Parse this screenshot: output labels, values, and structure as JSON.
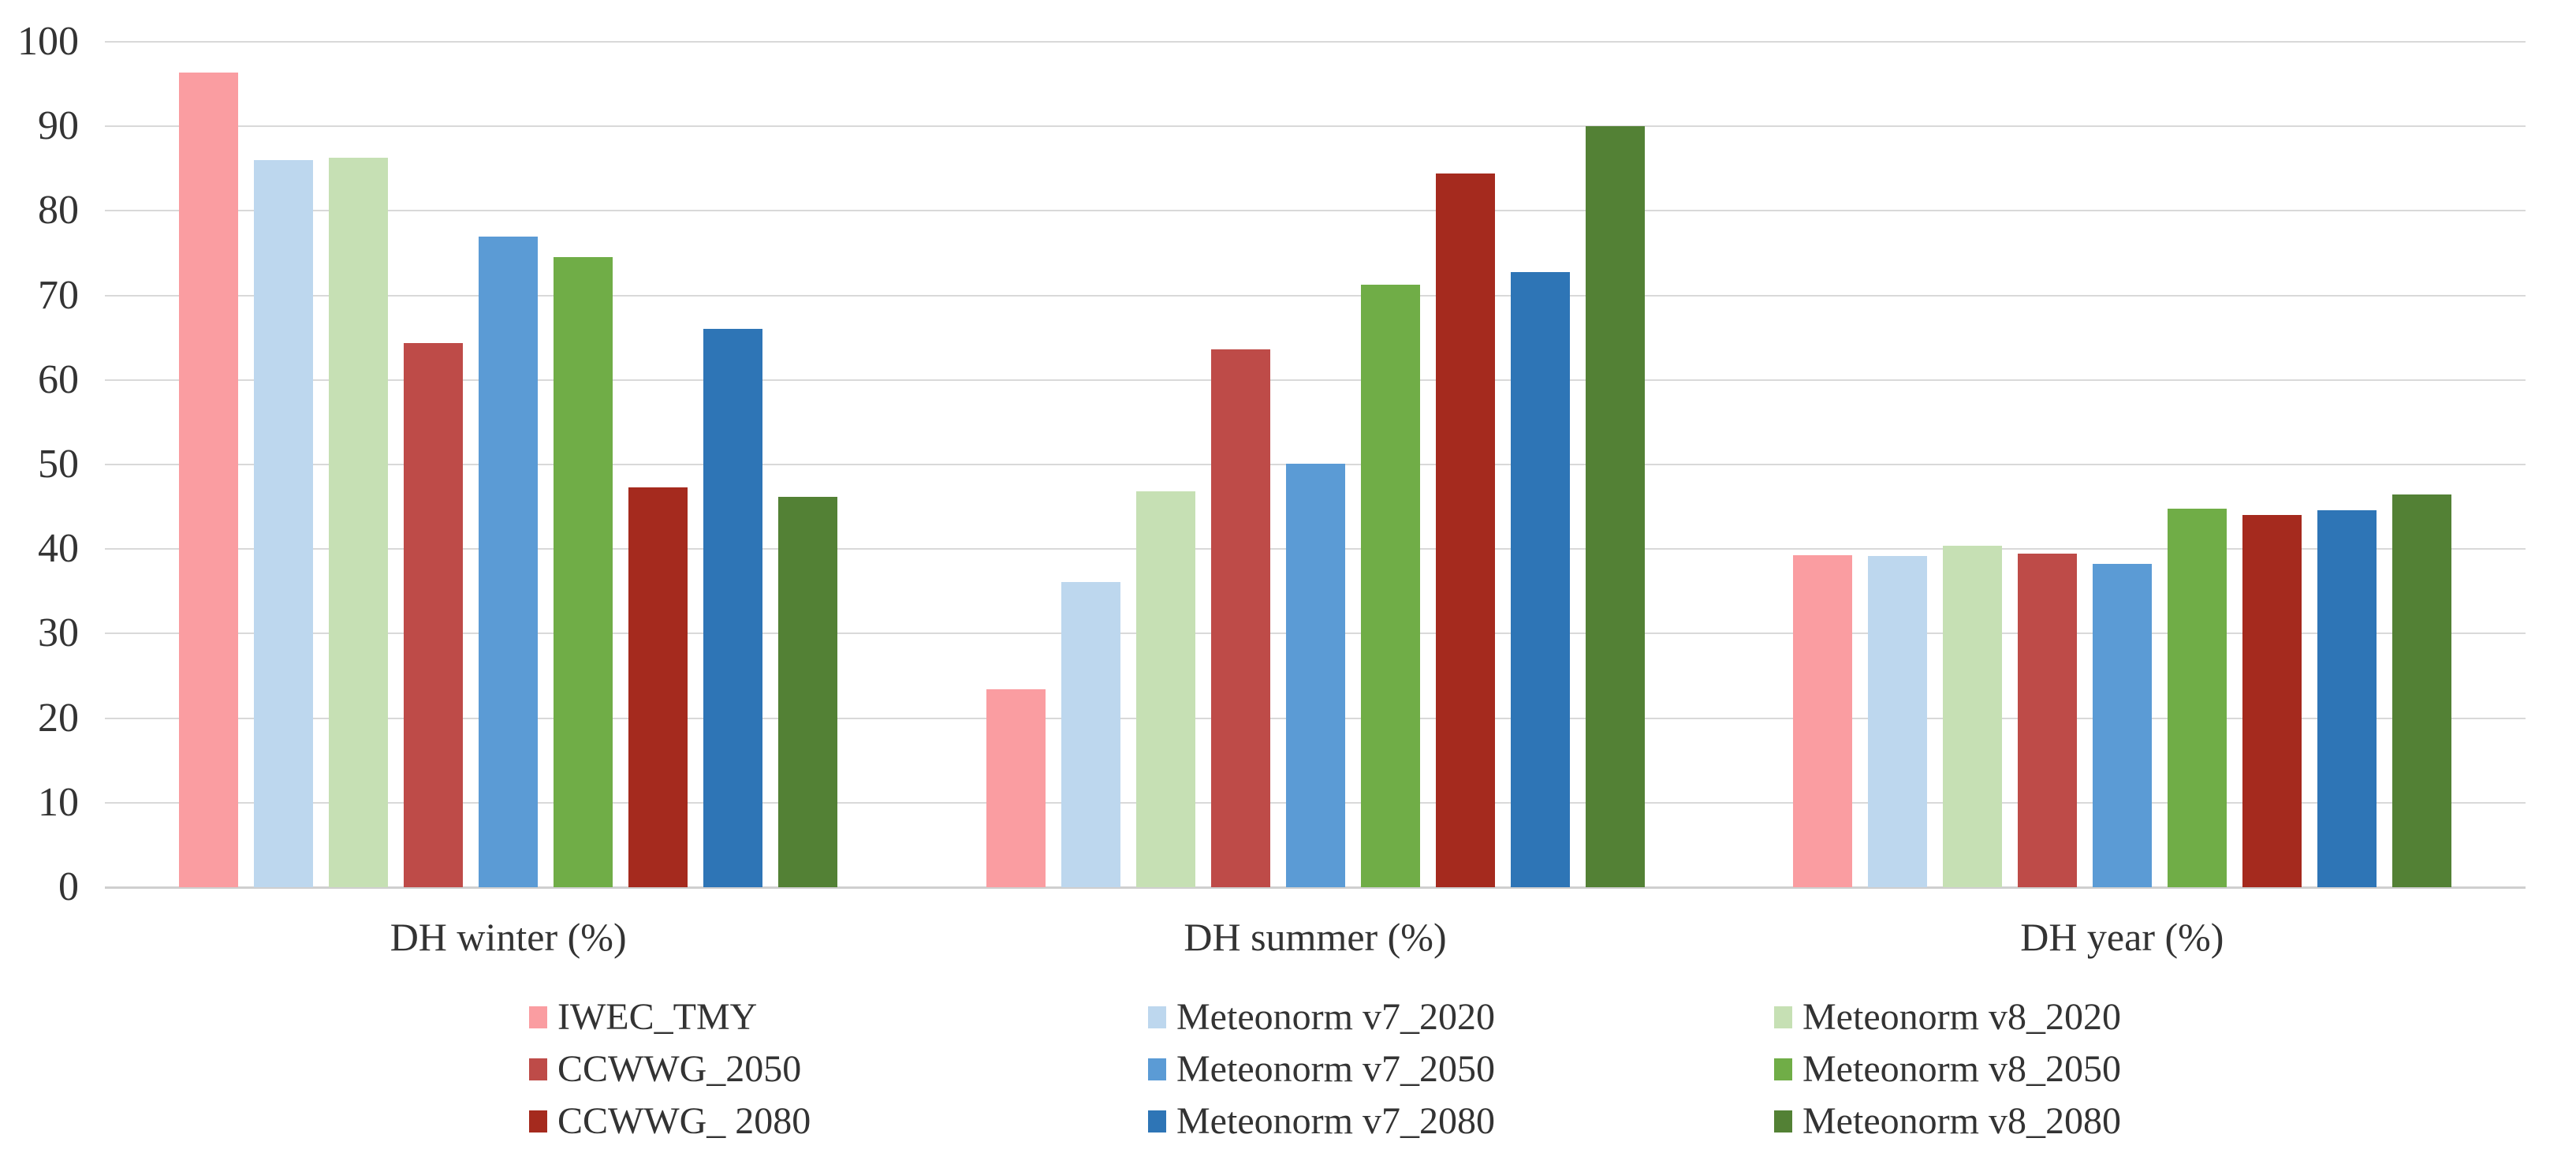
{
  "chart_data": {
    "type": "bar",
    "title": "",
    "xlabel": "",
    "ylabel": "",
    "categories": [
      "DH winter (%)",
      "DH summer (%)",
      "DH year (%)"
    ],
    "series": [
      {
        "name": "IWEC_TMY",
        "color": "#FA9DA1",
        "values": [
          96.4,
          23.4,
          39.3
        ]
      },
      {
        "name": "Meteonorm v7_2020",
        "color": "#BDD7EE",
        "values": [
          86.0,
          36.1,
          39.2
        ]
      },
      {
        "name": "Meteonorm v8_2020",
        "color": "#C6E0B4",
        "values": [
          86.3,
          46.8,
          40.4
        ]
      },
      {
        "name": "CCWWG_2050",
        "color": "#BE4B48",
        "values": [
          64.4,
          63.6,
          39.5
        ]
      },
      {
        "name": "Meteonorm v7_2050",
        "color": "#5B9BD5",
        "values": [
          77.0,
          50.1,
          38.2
        ]
      },
      {
        "name": "Meteonorm v8_2050",
        "color": "#70AD47",
        "values": [
          74.5,
          71.3,
          44.8
        ]
      },
      {
        "name": "CCWWG_ 2080",
        "color": "#A52A1E",
        "values": [
          47.3,
          84.4,
          44.0
        ]
      },
      {
        "name": "Meteonorm v7_2080",
        "color": "#2E75B6",
        "values": [
          66.0,
          72.8,
          44.6
        ]
      },
      {
        "name": "Meteonorm v8_2080",
        "color": "#538135",
        "values": [
          46.2,
          90.0,
          46.5
        ]
      }
    ],
    "yticks": [
      0,
      10,
      20,
      30,
      40,
      50,
      60,
      70,
      80,
      90,
      100
    ],
    "ylim": [
      0,
      100
    ],
    "grid": true,
    "legend_position": "bottom",
    "legend_columns": 3
  },
  "colors": {
    "background": "#FFFFFF",
    "gridline": "#D9D9D9",
    "axis_line": "#CFCFCF",
    "text": "#333333"
  }
}
